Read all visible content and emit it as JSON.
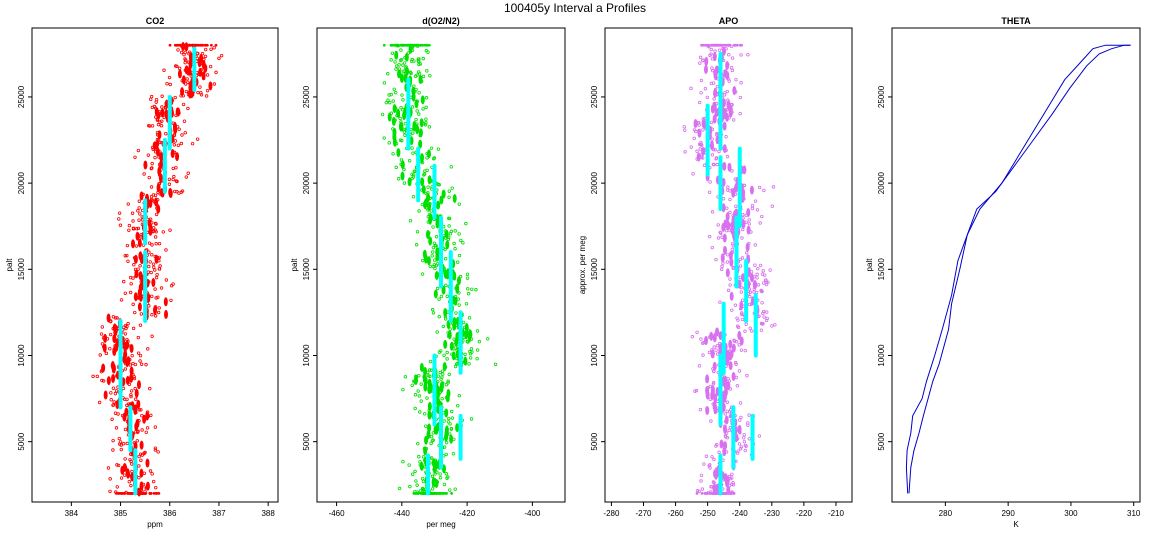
{
  "figure_title": "100405y   Interval a Profiles",
  "colors": {
    "co2": "#ff0000",
    "o2n2": "#00e000",
    "apo": "#d870f0",
    "theta": "#0000cc",
    "bin": "#00ffff"
  },
  "chart_data": [
    {
      "type": "scatter",
      "title": "CO2",
      "xlabel": "ppm",
      "ylabel": "palt",
      "xlim": [
        383.2,
        388.2
      ],
      "ylim": [
        1500,
        29000
      ],
      "xticks": [
        "384",
        "385",
        "386",
        "387",
        "388"
      ],
      "yticks": [
        "5000",
        "10000",
        "15000",
        "20000",
        "25000"
      ],
      "bin_series": [
        {
          "x": 386.5,
          "y": [
            25400,
            27800
          ]
        },
        {
          "x": 386.0,
          "y": [
            22000,
            25000
          ]
        },
        {
          "x": 385.9,
          "y": [
            19500,
            22500
          ]
        },
        {
          "x": 385.5,
          "y": [
            16500,
            19000
          ]
        },
        {
          "x": 385.5,
          "y": [
            12000,
            16000
          ]
        },
        {
          "x": 385.0,
          "y": [
            9000,
            12000
          ]
        },
        {
          "x": 385.0,
          "y": [
            7000,
            9500
          ]
        },
        {
          "x": 385.2,
          "y": [
            4500,
            7000
          ]
        },
        {
          "x": 385.3,
          "y": [
            2000,
            4500
          ]
        }
      ]
    },
    {
      "type": "scatter",
      "title": "d(O2/N2)",
      "xlabel": "per meg",
      "ylabel": "palt",
      "xlim": [
        -466,
        -390
      ],
      "ylim": [
        1500,
        29000
      ],
      "xticks": [
        "-460",
        "-440",
        "-420",
        "-400"
      ],
      "yticks": [
        "5000",
        "10000",
        "15000",
        "20000",
        "25000"
      ],
      "bin_series": [
        {
          "x": -438,
          "y": [
            22000,
            26000
          ]
        },
        {
          "x": -435,
          "y": [
            19000,
            22000
          ]
        },
        {
          "x": -430,
          "y": [
            18000,
            21000
          ]
        },
        {
          "x": -428,
          "y": [
            14000,
            18000
          ]
        },
        {
          "x": -425,
          "y": [
            12000,
            16000
          ]
        },
        {
          "x": -422,
          "y": [
            9000,
            12500
          ]
        },
        {
          "x": -430,
          "y": [
            6000,
            10000
          ]
        },
        {
          "x": -428,
          "y": [
            3500,
            7000
          ]
        },
        {
          "x": -422,
          "y": [
            4000,
            6500
          ]
        },
        {
          "x": -432,
          "y": [
            2000,
            4200
          ]
        }
      ]
    },
    {
      "type": "scatter",
      "title": "APO",
      "xlabel": "",
      "ylabel": "approx. per meg",
      "xlim": [
        -282,
        -205
      ],
      "ylim": [
        1500,
        29000
      ],
      "xticks": [
        "-280",
        "-270",
        "-260",
        "-250",
        "-240",
        "-230",
        "-220",
        "-210"
      ],
      "yticks": [
        "5000",
        "10000",
        "15000",
        "20000",
        "25000"
      ],
      "bin_series": [
        {
          "x": -246,
          "y": [
            22000,
            27500
          ]
        },
        {
          "x": -250,
          "y": [
            20500,
            24500
          ]
        },
        {
          "x": -246,
          "y": [
            18500,
            21500
          ]
        },
        {
          "x": -240,
          "y": [
            17500,
            22000
          ]
        },
        {
          "x": -241,
          "y": [
            14000,
            18000
          ]
        },
        {
          "x": -238,
          "y": [
            12000,
            15500
          ]
        },
        {
          "x": -245,
          "y": [
            9000,
            13000
          ]
        },
        {
          "x": -235,
          "y": [
            10000,
            13500
          ]
        },
        {
          "x": -246,
          "y": [
            6000,
            10000
          ]
        },
        {
          "x": -242,
          "y": [
            3500,
            7000
          ]
        },
        {
          "x": -236,
          "y": [
            4000,
            6500
          ]
        },
        {
          "x": -246,
          "y": [
            2000,
            4200
          ]
        }
      ]
    },
    {
      "type": "line",
      "title": "THETA",
      "xlabel": "K",
      "ylabel": "palt",
      "xlim": [
        271.5,
        311
      ],
      "ylim": [
        1500,
        29000
      ],
      "xticks": [
        "280",
        "290",
        "300",
        "310"
      ],
      "yticks": [
        "5000",
        "10000",
        "15000",
        "20000",
        "25000"
      ],
      "series": [
        {
          "x": [
            274.0,
            273.8,
            273.9,
            274.5,
            274.8,
            276.3,
            277.0,
            278.3,
            279.5,
            281.0,
            282.0,
            283.5,
            285.0,
            288.0,
            291.0,
            294.0,
            297.0,
            299.8,
            302.5,
            304.5,
            306.5,
            308.5,
            309.5
          ],
          "y": [
            2000,
            3500,
            4500,
            5500,
            6500,
            7500,
            8500,
            10000,
            11500,
            13500,
            15500,
            17000,
            18500,
            19500,
            21000,
            22500,
            24000,
            25500,
            26800,
            27500,
            27800,
            28000,
            28000
          ]
        },
        {
          "x": [
            274.2,
            274.5,
            275.0,
            275.8,
            276.5,
            278.0,
            279.0,
            280.5,
            281.0,
            282.3,
            283.5,
            285.5,
            289.0,
            291.5,
            294.0,
            296.5,
            299.0,
            301.5,
            303.5,
            305.5,
            307.5,
            309.5
          ],
          "y": [
            2000,
            3500,
            4500,
            5500,
            6500,
            8500,
            9500,
            11500,
            13000,
            15000,
            17000,
            18500,
            20000,
            21500,
            23000,
            24500,
            26000,
            27000,
            27800,
            28000,
            28000,
            28000
          ]
        }
      ]
    }
  ]
}
